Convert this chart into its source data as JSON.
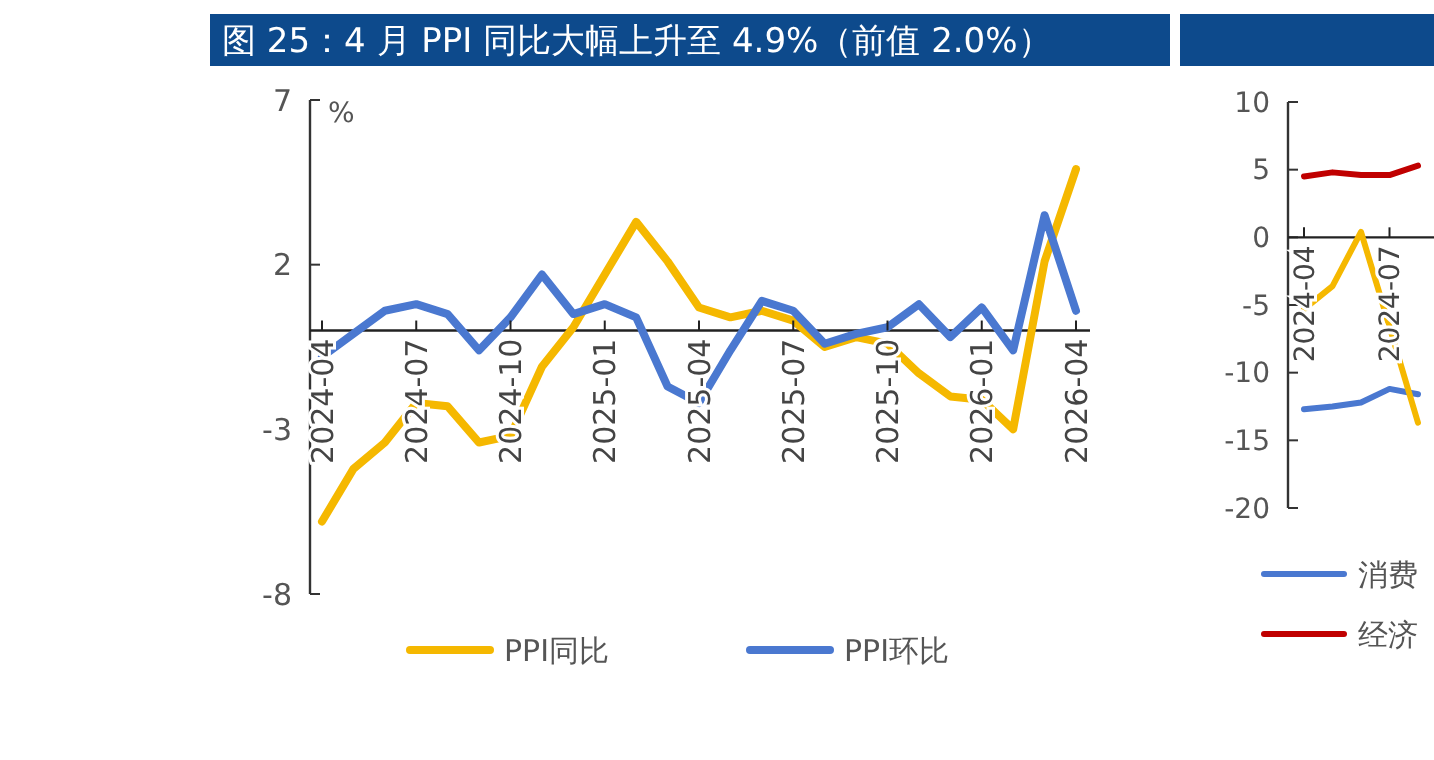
{
  "chart_data": [
    {
      "type": "line",
      "title": "图 25：4 月 PPI 同比大幅上升至 4.9%（前值 2.0%）",
      "ylabel": "%",
      "categories": [
        "2024-04",
        null,
        null,
        "2024-07",
        null,
        null,
        "2024-10",
        null,
        null,
        "2025-01",
        null,
        null,
        "2025-04",
        null,
        null,
        "2025-07",
        null,
        null,
        "2025-10",
        null,
        null,
        "2026-01",
        null,
        null,
        "2026-04"
      ],
      "ylim": [
        -8,
        7
      ],
      "yticks": [
        -8,
        -3,
        2,
        7
      ],
      "legend": "bottom",
      "series": [
        {
          "name": "PPI同比",
          "color": "#f5b800",
          "values": [
            -5.8,
            -4.2,
            -3.4,
            -2.2,
            -2.3,
            -3.4,
            -3.2,
            -1.1,
            0.1,
            1.7,
            3.3,
            2.1,
            0.7,
            0.4,
            0.6,
            0.3,
            -0.5,
            -0.2,
            -0.4,
            -1.3,
            -2.0,
            -2.1,
            -3.0,
            2.1,
            4.9
          ]
        },
        {
          "name": "PPI环比",
          "color": "#4a78d0",
          "values": [
            -0.8,
            -0.1,
            0.6,
            0.8,
            0.5,
            -0.6,
            0.4,
            1.7,
            0.5,
            0.8,
            0.4,
            -1.7,
            -2.2,
            -0.6,
            0.9,
            0.6,
            -0.4,
            -0.1,
            0.1,
            0.8,
            -0.2,
            0.7,
            -0.6,
            3.5,
            0.6
          ]
        }
      ]
    },
    {
      "type": "line",
      "categories": [
        "2024-04",
        null,
        null,
        "2024-07",
        null
      ],
      "ylim": [
        -20,
        10
      ],
      "yticks": [
        -20,
        -15,
        -10,
        -5,
        0,
        5,
        10
      ],
      "legend": "bottom",
      "series": [
        {
          "name": "消费",
          "color": "#4a78d0",
          "values": [
            -12.7,
            -12.5,
            -12.2,
            -11.2,
            -11.6
          ]
        },
        {
          "name": "经济",
          "color": "#c00000",
          "values": [
            4.5,
            4.8,
            4.6,
            4.6,
            5.3
          ]
        },
        {
          "color": "#f5b800",
          "values": [
            -5.3,
            -3.6,
            0.4,
            -6.6,
            -13.7
          ]
        }
      ]
    }
  ]
}
